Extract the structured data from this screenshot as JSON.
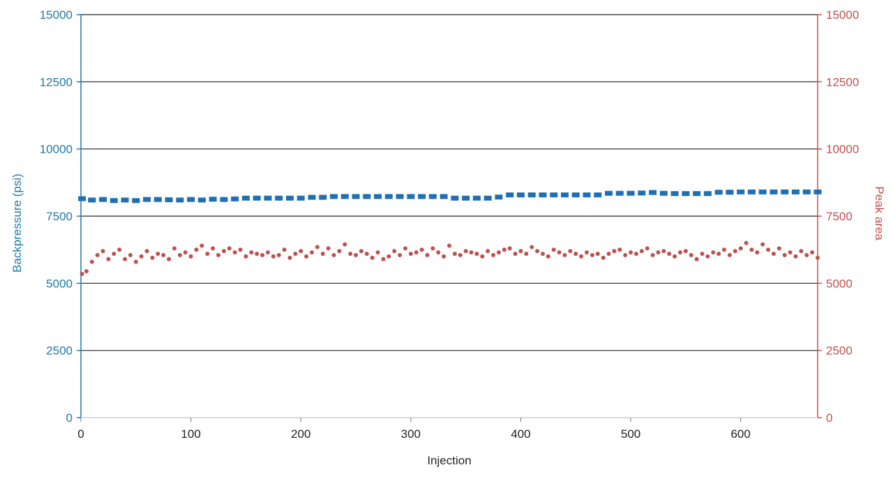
{
  "chart_data": {
    "type": "scatter",
    "xlabel": "Injection",
    "ylabel_left": "Backpressure (psi)",
    "ylabel_right": "Peak area",
    "xlim": [
      0,
      670
    ],
    "ylim_left": [
      0,
      15000
    ],
    "ylim_right": [
      0,
      15000
    ],
    "x_ticks": [
      "0",
      "100",
      "200",
      "300",
      "400",
      "500",
      "600"
    ],
    "y_ticks_left": [
      "0",
      "2500",
      "5000",
      "7500",
      "10000",
      "12500",
      "15000"
    ],
    "y_ticks_right": [
      "0",
      "2500",
      "5000",
      "7500",
      "10000",
      "12500",
      "15000"
    ],
    "grid": true,
    "legend": "none",
    "colors": {
      "backpressure": "#1f6fb5",
      "peak_area": "#c0504d",
      "left_axis": "#1f78a8",
      "right_axis": "#c0504d",
      "grid": "#222222"
    },
    "series": [
      {
        "axis": "left",
        "marker": "square",
        "color": "#1f6fb5",
        "x": [
          1,
          10,
          20,
          30,
          40,
          50,
          60,
          70,
          80,
          90,
          100,
          110,
          120,
          130,
          140,
          150,
          160,
          170,
          180,
          190,
          200,
          210,
          220,
          230,
          240,
          250,
          260,
          270,
          280,
          290,
          300,
          310,
          320,
          330,
          340,
          350,
          360,
          370,
          380,
          390,
          400,
          410,
          420,
          430,
          440,
          450,
          460,
          470,
          480,
          490,
          500,
          510,
          520,
          530,
          540,
          550,
          560,
          570,
          580,
          590,
          600,
          610,
          620,
          630,
          640,
          650,
          660,
          670
        ],
        "values": [
          8150,
          8100,
          8120,
          8080,
          8100,
          8080,
          8120,
          8120,
          8110,
          8100,
          8120,
          8100,
          8130,
          8120,
          8140,
          8170,
          8170,
          8170,
          8170,
          8170,
          8170,
          8200,
          8200,
          8230,
          8230,
          8230,
          8230,
          8230,
          8230,
          8230,
          8230,
          8230,
          8230,
          8230,
          8170,
          8170,
          8170,
          8170,
          8210,
          8290,
          8290,
          8290,
          8290,
          8290,
          8290,
          8290,
          8290,
          8290,
          8350,
          8350,
          8350,
          8360,
          8380,
          8350,
          8340,
          8340,
          8340,
          8340,
          8390,
          8390,
          8400,
          8400,
          8400,
          8400,
          8400,
          8400,
          8400,
          8400
        ]
      },
      {
        "axis": "right",
        "marker": "dot",
        "color": "#c0504d",
        "x": [
          1,
          5,
          10,
          15,
          20,
          25,
          30,
          35,
          40,
          45,
          50,
          55,
          60,
          65,
          70,
          75,
          80,
          85,
          90,
          95,
          100,
          105,
          110,
          115,
          120,
          125,
          130,
          135,
          140,
          145,
          150,
          155,
          160,
          165,
          170,
          175,
          180,
          185,
          190,
          195,
          200,
          205,
          210,
          215,
          220,
          225,
          230,
          235,
          240,
          245,
          250,
          255,
          260,
          265,
          270,
          275,
          280,
          285,
          290,
          295,
          300,
          305,
          310,
          315,
          320,
          325,
          330,
          335,
          340,
          345,
          350,
          355,
          360,
          365,
          370,
          375,
          380,
          385,
          390,
          395,
          400,
          405,
          410,
          415,
          420,
          425,
          430,
          435,
          440,
          445,
          450,
          455,
          460,
          465,
          470,
          475,
          480,
          485,
          490,
          495,
          500,
          505,
          510,
          515,
          520,
          525,
          530,
          535,
          540,
          545,
          550,
          555,
          560,
          565,
          570,
          575,
          580,
          585,
          590,
          595,
          600,
          605,
          610,
          615,
          620,
          625,
          630,
          635,
          640,
          645,
          650,
          655,
          660,
          665,
          670
        ],
        "values": [
          5350,
          5450,
          5800,
          6050,
          6200,
          5900,
          6100,
          6250,
          5900,
          6050,
          5800,
          6000,
          6200,
          5950,
          6100,
          6050,
          5900,
          6300,
          6050,
          6150,
          6000,
          6250,
          6400,
          6100,
          6300,
          6050,
          6200,
          6300,
          6150,
          6250,
          6000,
          6150,
          6100,
          6050,
          6150,
          6000,
          6050,
          6250,
          5950,
          6100,
          6200,
          6000,
          6150,
          6350,
          6100,
          6300,
          6050,
          6200,
          6450,
          6100,
          6050,
          6200,
          6100,
          5950,
          6150,
          5900,
          6000,
          6200,
          6050,
          6300,
          6100,
          6150,
          6250,
          6050,
          6300,
          6150,
          6000,
          6400,
          6100,
          6050,
          6200,
          6150,
          6100,
          6000,
          6200,
          6050,
          6150,
          6250,
          6300,
          6100,
          6200,
          6100,
          6350,
          6200,
          6100,
          6000,
          6250,
          6150,
          6050,
          6200,
          6100,
          6000,
          6150,
          6050,
          6100,
          5950,
          6100,
          6200,
          6250,
          6050,
          6150,
          6100,
          6200,
          6300,
          6050,
          6150,
          6200,
          6100,
          6000,
          6150,
          6200,
          6050,
          5900,
          6100,
          6000,
          6150,
          6100,
          6250,
          6050,
          6200,
          6300,
          6500,
          6250,
          6150,
          6450,
          6250,
          6100,
          6300,
          6050,
          6150,
          6000,
          6200,
          6050,
          6150,
          5950
        ]
      }
    ]
  }
}
